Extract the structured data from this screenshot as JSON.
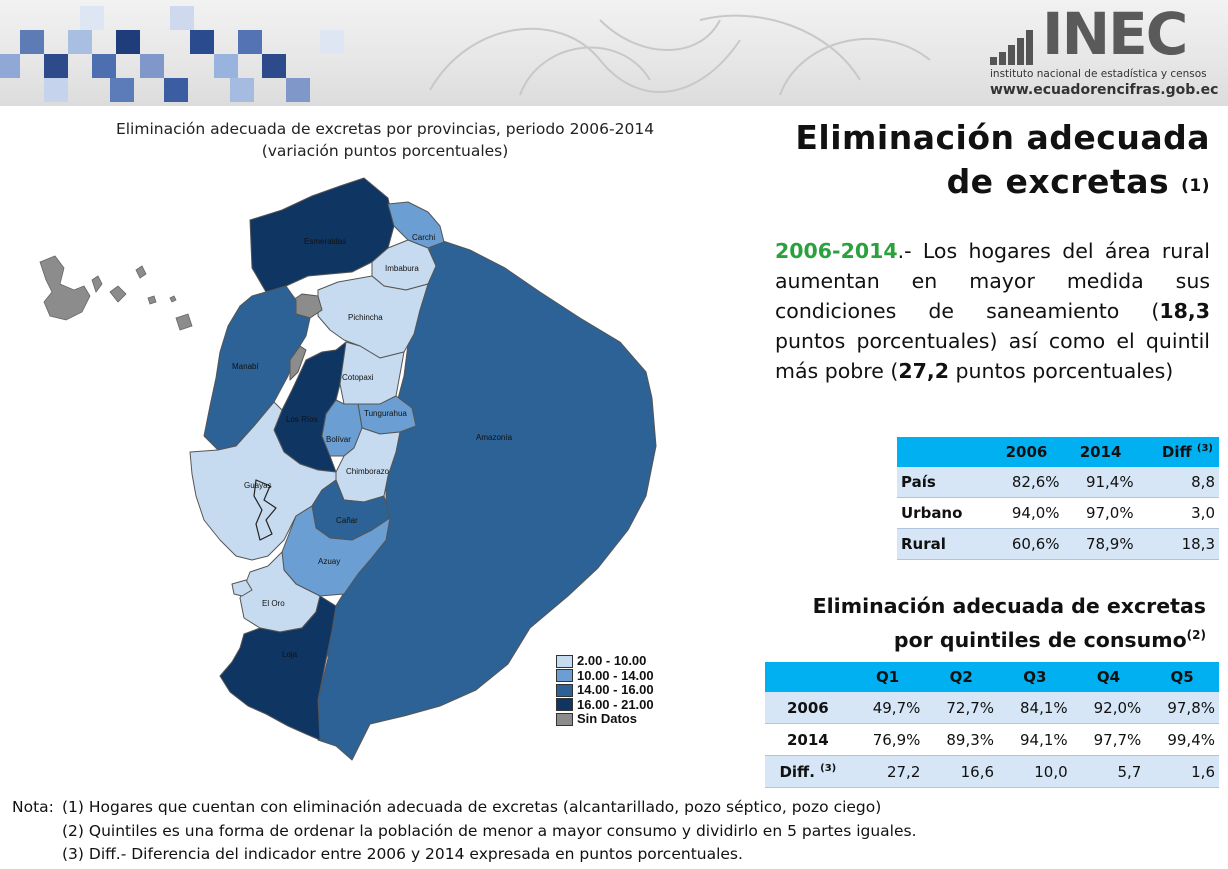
{
  "header": {
    "logo_text": "INEC",
    "institute": "instituto nacional de estadística y censos",
    "website": "www.ecuadorencifras.gob.ec"
  },
  "map": {
    "title_line1": "Eliminación adecuada de excretas por provincias, periodo 2006-2014",
    "title_line2": "(variación puntos porcentuales)",
    "provinces": {
      "esmeraldas": "Esmeraldas",
      "carchi": "Carchi",
      "imbabura": "Imbabura",
      "pichincha": "Pichincha",
      "manabi": "Manabí",
      "cotopaxi": "Cotopaxi",
      "los_rios": "Los Ríos",
      "tungurahua": "Tungurahua",
      "bolivar": "Bolívar",
      "amazonia": "Amazonía",
      "chimborazo": "Chimborazo",
      "guayas": "Guayas",
      "canar": "Cañar",
      "azuay": "Azuay",
      "el_oro": "El Oro",
      "loja": "Loja"
    },
    "colors": {
      "class1": "#c6dbef",
      "class2": "#6b9fd3",
      "class3": "#2c6296",
      "class4": "#0f3563",
      "nodata": "#8c8c8c"
    },
    "legend": [
      {
        "label": "2.00 - 10.00",
        "color": "#c6dbef"
      },
      {
        "label": "10.00 - 14.00",
        "color": "#6b9fd3"
      },
      {
        "label": "14.00 - 16.00",
        "color": "#2c6296"
      },
      {
        "label": "16.00 - 21.00",
        "color": "#0f3563"
      },
      {
        "label": "Sin Datos",
        "color": "#8c8c8c"
      }
    ]
  },
  "title": {
    "line1": "Eliminación adecuada",
    "line2": "de excretas",
    "sup": "(1)"
  },
  "summary": {
    "period": "2006-2014",
    "text1": ".- Los hogares del área rural aumentan en mayor medida sus condiciones de saneamiento (",
    "value1": "18,3",
    "text2": " puntos porcentuales) así como el quintil más pobre (",
    "value2": "27,2",
    "text3": " puntos porcentuales)"
  },
  "area_table": {
    "headers": [
      "2006",
      "2014",
      "Diff"
    ],
    "diff_sup": "(3)",
    "rows": [
      {
        "label": "País",
        "v2006": "82,6%",
        "v2014": "91,4%",
        "diff": "8,8"
      },
      {
        "label": "Urbano",
        "v2006": "94,0%",
        "v2014": "97,0%",
        "diff": "3,0"
      },
      {
        "label": "Rural",
        "v2006": "60,6%",
        "v2014": "78,9%",
        "diff": "18,3"
      }
    ]
  },
  "quintile_section": {
    "title_line1": "Eliminación adecuada de excretas",
    "title_line2": "por quintiles de consumo",
    "title_sup": "(2)"
  },
  "quintile_table": {
    "headers": [
      "Q1",
      "Q2",
      "Q3",
      "Q4",
      "Q5"
    ],
    "rows": [
      {
        "label": "2006",
        "sup": "",
        "values": [
          "49,7%",
          "72,7%",
          "84,1%",
          "92,0%",
          "97,8%"
        ]
      },
      {
        "label": "2014",
        "sup": "",
        "values": [
          "76,9%",
          "89,3%",
          "94,1%",
          "97,7%",
          "99,4%"
        ]
      },
      {
        "label": "Diff.",
        "sup": "(3)",
        "values": [
          "27,2",
          "16,6",
          "10,0",
          "5,7",
          "1,6"
        ]
      }
    ]
  },
  "notes": {
    "label": "Nota:",
    "items": [
      "(1) Hogares que cuentan con eliminación adecuada de excretas (alcantarillado, pozo séptico, pozo ciego)",
      "(2) Quintiles es una forma de ordenar la población de menor a mayor consumo y dividirlo en 5 partes iguales.",
      "(3) Diff.- Diferencia del indicador entre 2006 y 2014 expresada en puntos porcentuales."
    ]
  }
}
